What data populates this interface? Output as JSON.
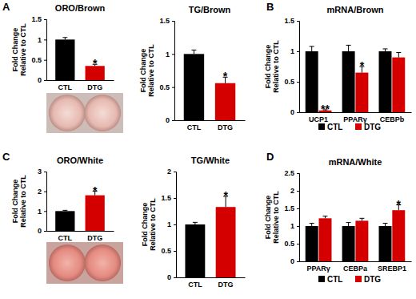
{
  "chart_data": [
    {
      "type": "bar",
      "panel_label": "A",
      "title": "ORO/Brown",
      "y_label": [
        "Fold Change",
        "Relative to CTL"
      ],
      "categories": [
        "CTL",
        "DTG"
      ],
      "values": [
        1.0,
        0.35
      ],
      "errors": [
        0.05,
        0.04
      ],
      "colors": [
        "#000000",
        "#d40000"
      ],
      "ylim": [
        0,
        1.5
      ],
      "yticks": [
        0,
        0.5,
        1,
        1.5
      ],
      "annotations": [
        {
          "x": "DTG",
          "text": "*"
        }
      ]
    },
    {
      "type": "bar",
      "title": "TG/Brown",
      "y_label": [
        "Fold Change",
        "Relative to CTL"
      ],
      "categories": [
        "CTL",
        "DTG"
      ],
      "values": [
        1.0,
        0.56
      ],
      "errors": [
        0.06,
        0.09
      ],
      "colors": [
        "#000000",
        "#d40000"
      ],
      "ylim": [
        0,
        1.5
      ],
      "yticks": [
        0,
        0.5,
        1,
        1.5
      ],
      "annotations": [
        {
          "x": "DTG",
          "text": "*"
        }
      ]
    },
    {
      "type": "bar",
      "panel_label": "B",
      "title": "mRNA/Brown",
      "y_label": [
        "Fold Change",
        "Relative to CTL"
      ],
      "categories": [
        "UCP1",
        "PPARγ",
        "CEBPb"
      ],
      "series": [
        {
          "name": "CTL",
          "color": "#000000",
          "values": [
            1.0,
            1.0,
            1.0
          ],
          "errors": [
            0.08,
            0.1,
            0.04
          ]
        },
        {
          "name": "DTG",
          "color": "#d40000",
          "values": [
            0.03,
            0.65,
            0.9
          ],
          "errors": [
            0.01,
            0.1,
            0.08
          ]
        }
      ],
      "ylim": [
        0,
        1.5
      ],
      "yticks": [
        0,
        0.5,
        1,
        1.5
      ],
      "legend": "bottom",
      "annotations": [
        {
          "x": "UCP1",
          "series": "DTG",
          "text": "**"
        },
        {
          "x": "PPARγ",
          "series": "DTG",
          "text": "*"
        }
      ]
    },
    {
      "type": "bar",
      "panel_label": "C",
      "title": "ORO/White",
      "y_label": [
        "Fold Change",
        "Relative to CTL"
      ],
      "categories": [
        "CTL",
        "DTG"
      ],
      "values": [
        1.0,
        1.8
      ],
      "errors": [
        0.04,
        0.2
      ],
      "colors": [
        "#000000",
        "#d40000"
      ],
      "ylim": [
        0,
        3
      ],
      "yticks": [
        0,
        1,
        2,
        3
      ],
      "annotations": [
        {
          "x": "DTG",
          "text": "*"
        }
      ]
    },
    {
      "type": "bar",
      "title": "TG/White",
      "y_label": [
        "Fold Change",
        "Relative to CTL"
      ],
      "categories": [
        "CTL",
        "DTG"
      ],
      "values": [
        1.0,
        1.33
      ],
      "errors": [
        0.04,
        0.2
      ],
      "colors": [
        "#000000",
        "#d40000"
      ],
      "ylim": [
        0,
        2
      ],
      "yticks": [
        0,
        0.5,
        1,
        1.5,
        2
      ],
      "annotations": [
        {
          "x": "DTG",
          "text": "*"
        }
      ]
    },
    {
      "type": "bar",
      "panel_label": "D",
      "title": "mRNA/White",
      "y_label": [
        "Fold Change",
        "Relative to CTL"
      ],
      "categories": [
        "PPARγ",
        "CEBPa",
        "SREBP1"
      ],
      "series": [
        {
          "name": "CTL",
          "color": "#000000",
          "values": [
            1.0,
            1.0,
            1.0
          ],
          "errors": [
            0.08,
            0.1,
            0.08
          ]
        },
        {
          "name": "DTG",
          "color": "#d40000",
          "values": [
            1.22,
            1.15,
            1.45
          ],
          "errors": [
            0.06,
            0.07,
            0.15
          ]
        }
      ],
      "ylim": [
        0,
        2.5
      ],
      "yticks": [
        0,
        0.5,
        1,
        1.5,
        2,
        2.5
      ],
      "legend": "bottom",
      "annotations": [
        {
          "x": "SREBP1",
          "series": "DTG",
          "text": "*"
        }
      ]
    }
  ]
}
